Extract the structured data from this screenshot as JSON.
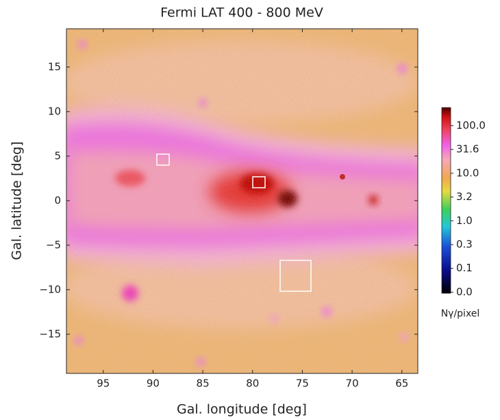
{
  "chart_data": {
    "type": "heatmap",
    "title": "Fermi LAT 400 - 800 MeV",
    "xlabel": "Gal. longitude [deg]",
    "ylabel": "Gal. latitude [deg]",
    "xlim": [
      98.7,
      63.4
    ],
    "xticks": [
      95,
      90,
      85,
      80,
      75,
      70,
      65
    ],
    "ylim": [
      -19.4,
      19.3
    ],
    "yticks": [
      {
        "value": -15,
        "label": "−15"
      },
      {
        "value": -10,
        "label": "−10"
      },
      {
        "value": -5,
        "label": "−5"
      },
      0,
      5,
      10,
      15
    ],
    "colorbar": {
      "label": "Nγ/pixel",
      "log": true,
      "clim": [
        0.03,
        240
      ],
      "ticks": [
        {
          "value": 0.0316,
          "label": "0.0"
        },
        0.1,
        {
          "value": 0.316,
          "label": "0.3"
        },
        {
          "value": 1,
          "label": "1.0"
        },
        {
          "value": 3.16,
          "label": "3.2"
        },
        {
          "value": 10,
          "label": "10.0"
        },
        31.6,
        {
          "value": 100,
          "label": "100.0"
        }
      ]
    }
  }
}
